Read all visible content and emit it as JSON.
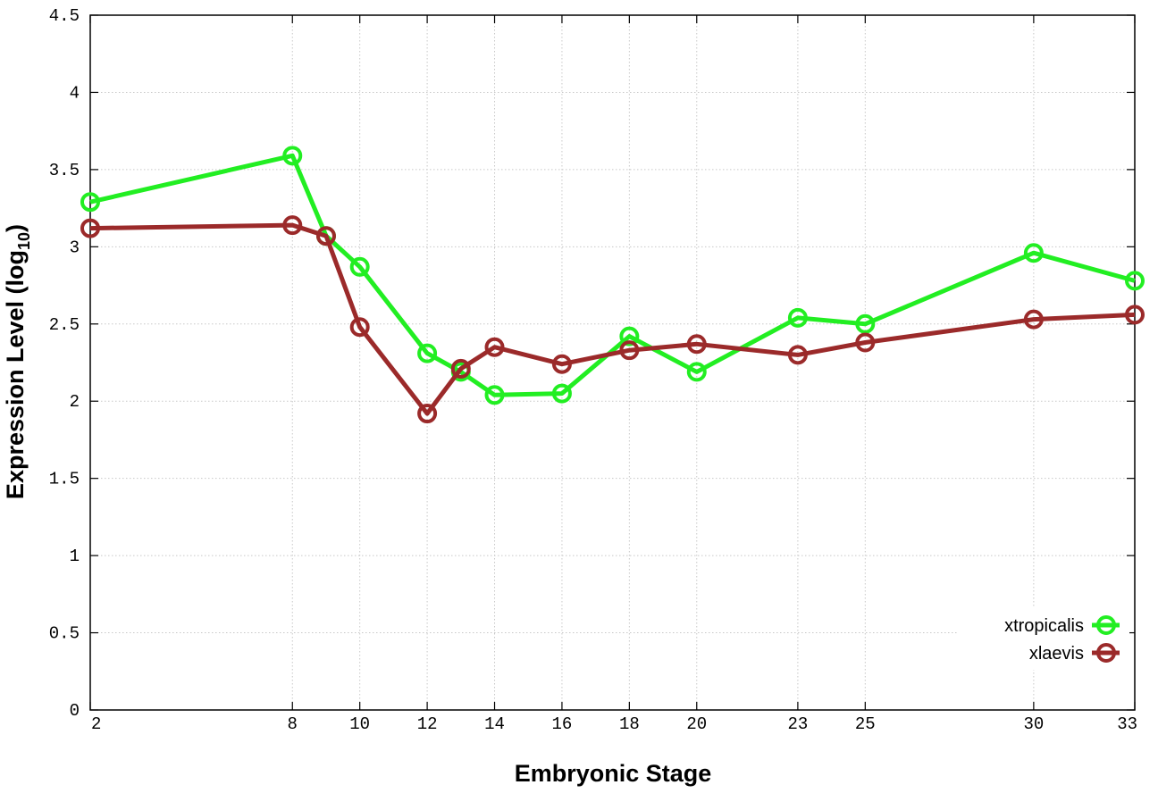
{
  "chart_data": {
    "type": "line",
    "xlabel": "Embryonic Stage",
    "ylabel": "Expression Level (log",
    "ylabel_subscript": "10",
    "ylabel_suffix": ")",
    "x_ticks": [
      2,
      8,
      10,
      12,
      14,
      16,
      18,
      20,
      23,
      25,
      30,
      33
    ],
    "y_ticks": [
      "0",
      "0.5",
      "1",
      "1.5",
      "2",
      "2.5",
      "3",
      "3.5",
      "4",
      "4.5"
    ],
    "xlim": [
      2,
      33
    ],
    "ylim": [
      0,
      4.5
    ],
    "grid": true,
    "legend_position": "bottom-right",
    "series": [
      {
        "name": "xtropicalis",
        "color": "#22ee22",
        "x": [
          2,
          8,
          9,
          10,
          12,
          13,
          14,
          16,
          18,
          20,
          23,
          25,
          30,
          33
        ],
        "y": [
          3.29,
          3.59,
          3.07,
          2.87,
          2.31,
          2.19,
          2.04,
          2.05,
          2.42,
          2.19,
          2.54,
          2.5,
          2.96,
          2.78
        ]
      },
      {
        "name": "xlaevis",
        "color": "#9b2a2a",
        "x": [
          2,
          8,
          9,
          10,
          12,
          13,
          14,
          16,
          18,
          20,
          23,
          25,
          30,
          33
        ],
        "y": [
          3.12,
          3.14,
          3.07,
          2.48,
          1.92,
          2.21,
          2.35,
          2.24,
          2.33,
          2.37,
          2.3,
          2.38,
          2.53,
          2.56
        ]
      }
    ]
  }
}
